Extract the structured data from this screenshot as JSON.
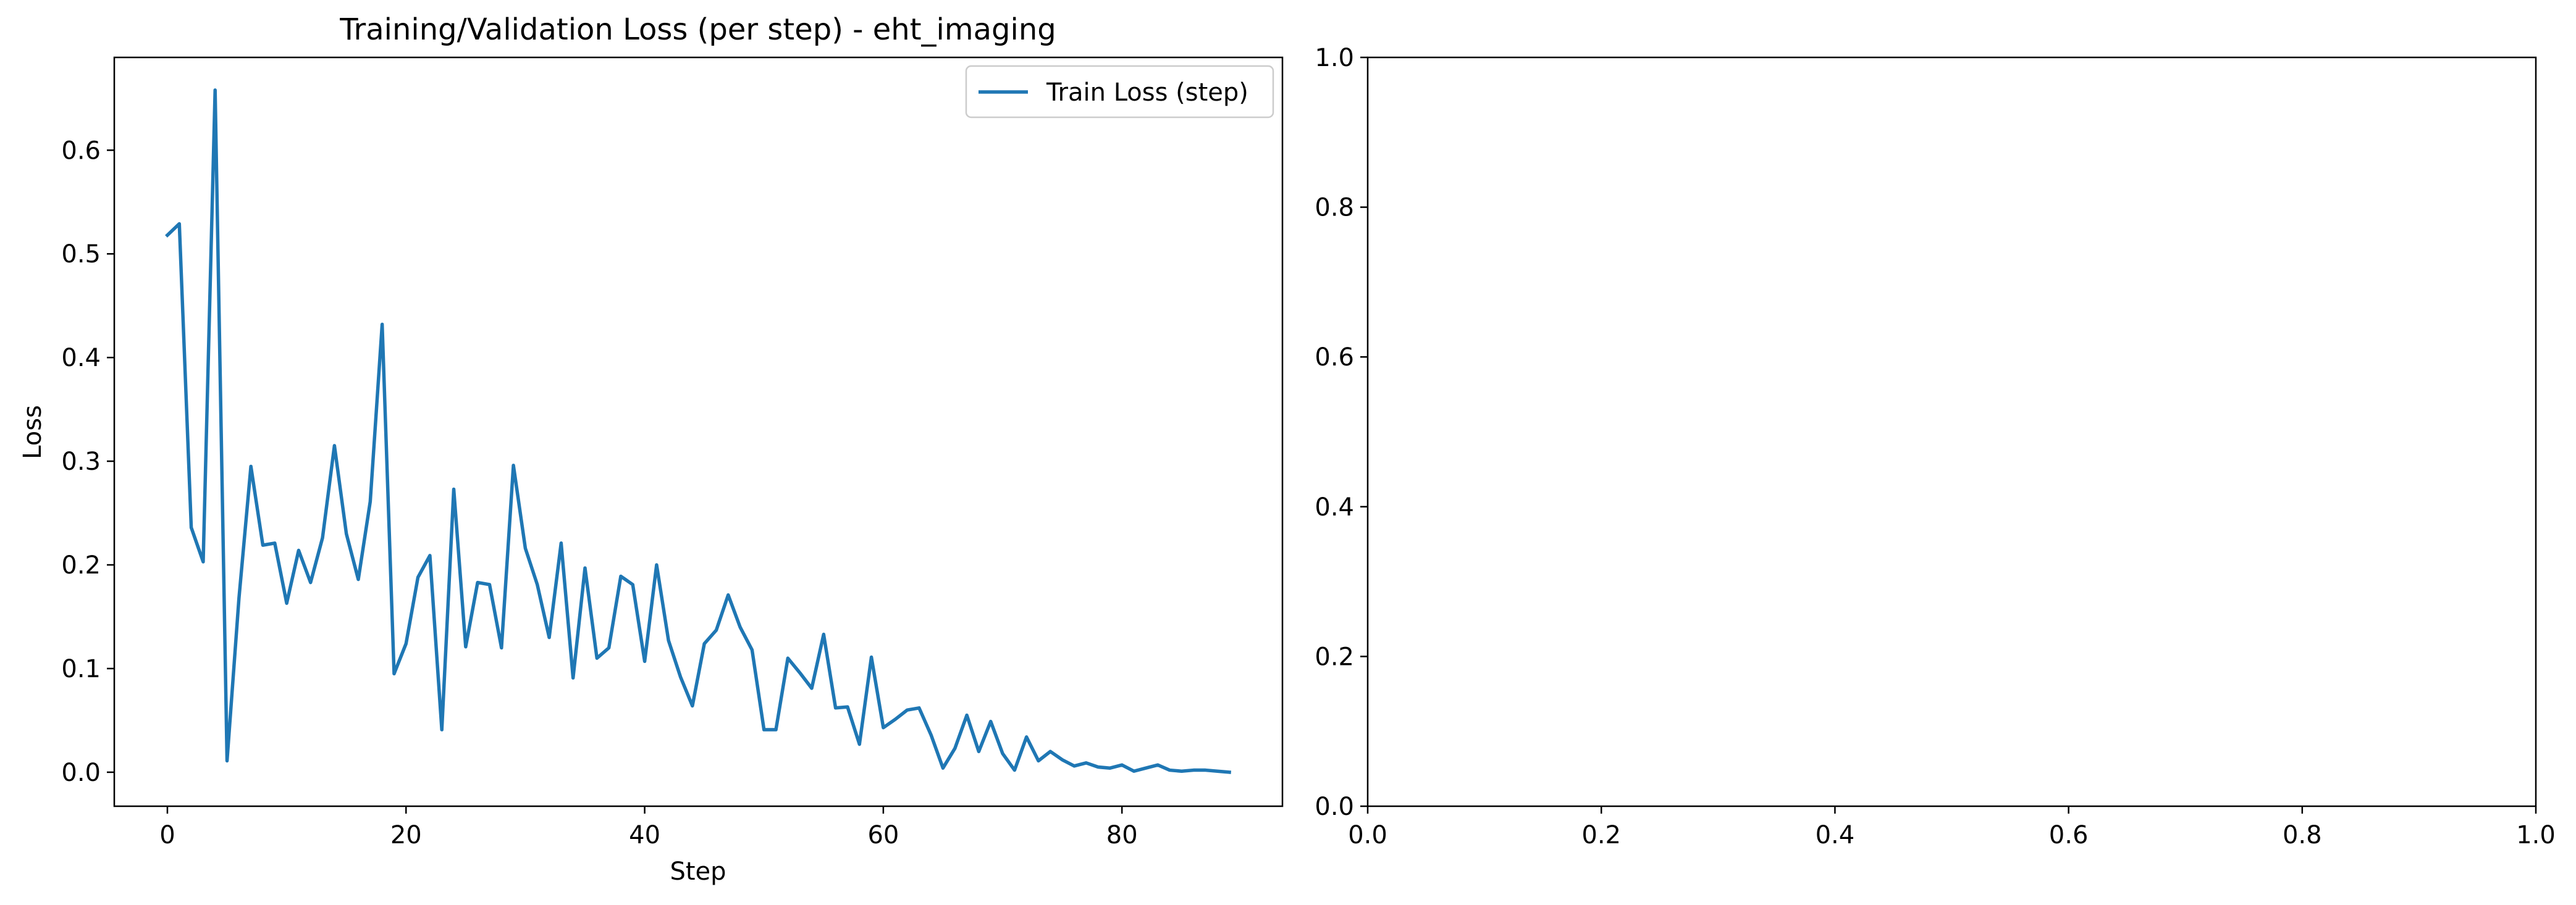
{
  "chart_data": [
    {
      "type": "line",
      "title": "Training/Validation Loss (per step) - eht_imaging",
      "xlabel": "Step",
      "ylabel": "Loss",
      "xlim": [
        -4.45,
        93.45
      ],
      "ylim": [
        -0.0328,
        0.6895
      ],
      "xticks": [
        0,
        20,
        40,
        60,
        80
      ],
      "yticks": [
        0.0,
        0.1,
        0.2,
        0.3,
        0.4,
        0.5,
        0.6
      ],
      "xtick_labels": [
        "0",
        "20",
        "40",
        "60",
        "80"
      ],
      "ytick_labels": [
        "0.0",
        "0.1",
        "0.2",
        "0.3",
        "0.4",
        "0.5",
        "0.6"
      ],
      "grid": false,
      "legend_position": "top-right",
      "series": [
        {
          "name": "Train Loss (step)",
          "color": "#1f77b4",
          "x": [
            0,
            1,
            2,
            3,
            4,
            5,
            6,
            7,
            8,
            9,
            10,
            11,
            12,
            13,
            14,
            15,
            16,
            17,
            18,
            19,
            20,
            21,
            22,
            23,
            24,
            25,
            26,
            27,
            28,
            29,
            30,
            31,
            32,
            33,
            34,
            35,
            36,
            37,
            38,
            39,
            40,
            41,
            42,
            43,
            44,
            45,
            46,
            47,
            48,
            49,
            50,
            51,
            52,
            53,
            54,
            55,
            56,
            57,
            58,
            59,
            60,
            61,
            62,
            63,
            64,
            65,
            66,
            67,
            68,
            69,
            70,
            71,
            72,
            73,
            74,
            75,
            76,
            77,
            78,
            79,
            80,
            81,
            82,
            83,
            84,
            85,
            86,
            87,
            88,
            89
          ],
          "values": [
            0.518,
            0.529,
            0.236,
            0.203,
            0.658,
            0.011,
            0.168,
            0.295,
            0.219,
            0.221,
            0.163,
            0.214,
            0.183,
            0.226,
            0.315,
            0.23,
            0.186,
            0.261,
            0.432,
            0.095,
            0.124,
            0.188,
            0.209,
            0.041,
            0.273,
            0.121,
            0.183,
            0.181,
            0.12,
            0.296,
            0.216,
            0.181,
            0.13,
            0.221,
            0.091,
            0.197,
            0.11,
            0.12,
            0.189,
            0.181,
            0.107,
            0.2,
            0.127,
            0.092,
            0.064,
            0.124,
            0.137,
            0.171,
            0.14,
            0.118,
            0.041,
            0.041,
            0.11,
            0.096,
            0.081,
            0.133,
            0.062,
            0.063,
            0.027,
            0.111,
            0.043,
            0.051,
            0.06,
            0.062,
            0.036,
            0.004,
            0.023,
            0.055,
            0.02,
            0.049,
            0.018,
            0.002,
            0.034,
            0.011,
            0.02,
            0.012,
            0.006,
            0.009,
            0.005,
            0.004,
            0.007,
            0.001,
            0.004,
            0.007,
            0.002,
            0.001,
            0.002,
            0.002,
            0.001,
            0.0
          ]
        }
      ]
    },
    {
      "type": "line",
      "title": "",
      "xlabel": "",
      "ylabel": "",
      "xlim": [
        0.0,
        1.0
      ],
      "ylim": [
        0.0,
        1.0
      ],
      "xticks": [
        0.0,
        0.2,
        0.4,
        0.6,
        0.8,
        1.0
      ],
      "yticks": [
        0.0,
        0.2,
        0.4,
        0.6,
        0.8,
        1.0
      ],
      "xtick_labels": [
        "0.0",
        "0.2",
        "0.4",
        "0.6",
        "0.8",
        "1.0"
      ],
      "ytick_labels": [
        "0.0",
        "0.2",
        "0.4",
        "0.6",
        "0.8",
        "1.0"
      ],
      "grid": false,
      "series": []
    }
  ]
}
